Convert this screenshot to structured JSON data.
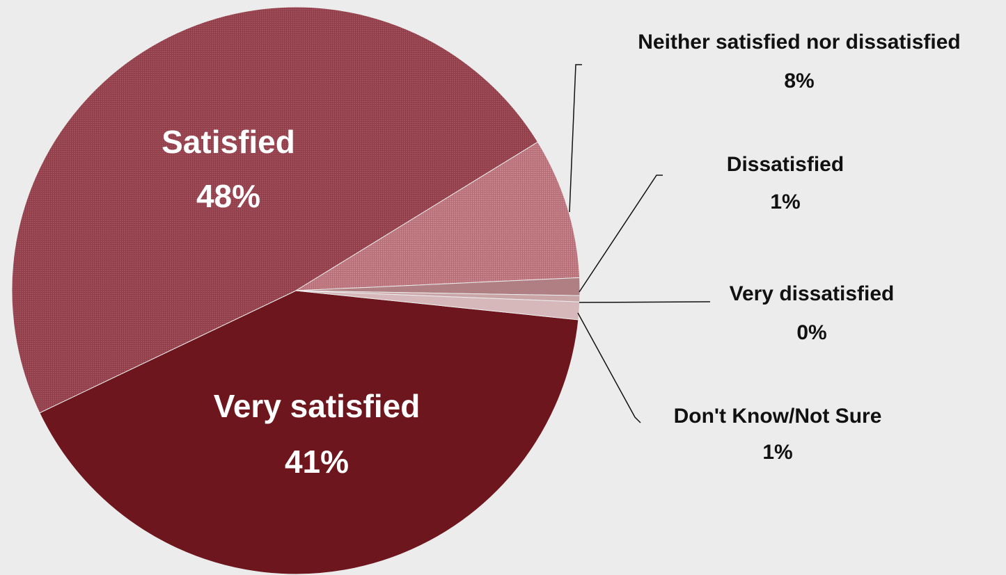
{
  "chart_data": {
    "type": "pie",
    "title": "",
    "slices": [
      {
        "label": "Very satisfied",
        "value": 41,
        "value_label": "41%",
        "color": "#6e161e"
      },
      {
        "label": "Satisfied",
        "value": 48,
        "value_label": "48%",
        "color": "#9f4d58",
        "pattern": "fine-grid"
      },
      {
        "label": "Neither satisfied nor dissatisfied",
        "value": 8,
        "value_label": "8%",
        "color": "#c47f87",
        "pattern": "fine-grid"
      },
      {
        "label": "Dissatisfied",
        "value": 1,
        "value_label": "1%",
        "color": "#b07f83"
      },
      {
        "label": "Very dissatisfied",
        "value": 0,
        "value_label": "0%",
        "color": "#c9a5a8"
      },
      {
        "label": "Don't Know/Not Sure",
        "value": 1,
        "value_label": "1%",
        "color": "#d6b8ba"
      }
    ],
    "label_placement": "inside for large slices, outside with leader lines for small slices",
    "legend": "none"
  }
}
